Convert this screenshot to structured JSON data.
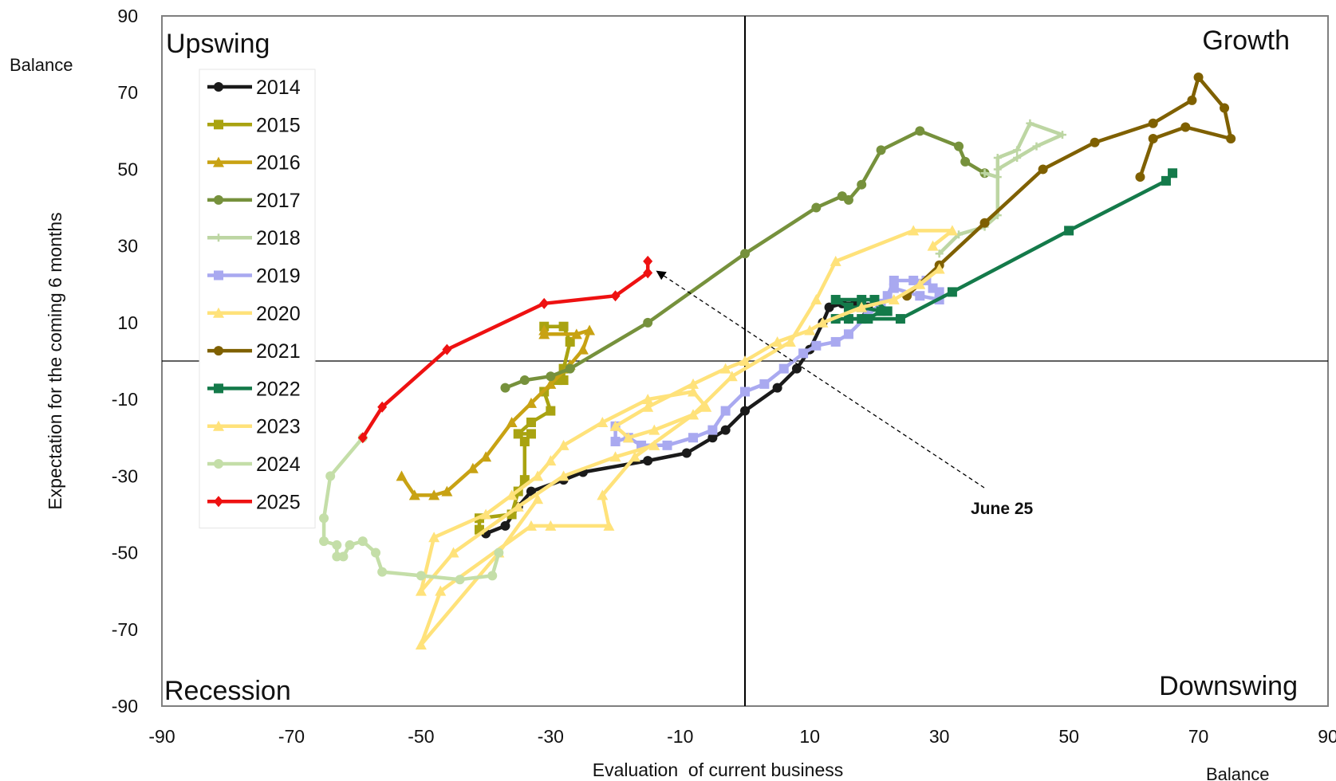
{
  "chart_data": {
    "type": "line",
    "xlabel": "Evaluation  of current business",
    "ylabel": "Expectation for the coming 6 months",
    "x_unit_label": "Balance",
    "y_unit_label": "Balance",
    "xlim": [
      -90,
      90
    ],
    "ylim": [
      -90,
      90
    ],
    "x_ticks": [
      "-90",
      "-70",
      "-50",
      "-30",
      "-10",
      "10",
      "30",
      "50",
      "70",
      "90"
    ],
    "y_ticks": [
      "90",
      "70",
      "50",
      "30",
      "10",
      "-10",
      "-30",
      "-50",
      "-70",
      "-90"
    ],
    "quadrants": {
      "top_left": "Upswing",
      "top_right": "Growth",
      "bottom_left": "Recession",
      "bottom_right": "Downswing"
    },
    "annotation": {
      "text": "June 25",
      "points_to": [
        -15,
        25
      ]
    },
    "legend_position": "top-left",
    "series": [
      {
        "name": "2014",
        "color": "#1a1a1a",
        "marker": "circle",
        "points": [
          [
            -40,
            -45
          ],
          [
            -37,
            -43
          ],
          [
            -35,
            -38
          ],
          [
            -33,
            -34
          ],
          [
            -28,
            -31
          ],
          [
            -25,
            -29
          ],
          [
            -15,
            -26
          ],
          [
            -9,
            -24
          ],
          [
            -5,
            -20
          ],
          [
            -3,
            -18
          ],
          [
            0,
            -13
          ],
          [
            5,
            -7
          ],
          [
            8,
            -2
          ],
          [
            10,
            3
          ],
          [
            12,
            10
          ],
          [
            13,
            14
          ],
          [
            15,
            15
          ],
          [
            17,
            15
          ],
          [
            19,
            14
          ],
          [
            18,
            11
          ],
          [
            16,
            11
          ]
        ]
      },
      {
        "name": "2015",
        "color": "#a9a311",
        "marker": "square",
        "points": [
          [
            -41,
            -44
          ],
          [
            -41,
            -41
          ],
          [
            -36,
            -40
          ],
          [
            -35,
            -34
          ],
          [
            -34,
            -31
          ],
          [
            -34,
            -21
          ],
          [
            -33,
            -19
          ],
          [
            -35,
            -19
          ],
          [
            -33,
            -16
          ],
          [
            -30,
            -13
          ],
          [
            -31,
            -8
          ],
          [
            -29,
            -5
          ],
          [
            -28,
            -5
          ],
          [
            -28,
            -2
          ],
          [
            -27,
            5
          ],
          [
            -28,
            9
          ],
          [
            -31,
            9
          ]
        ]
      },
      {
        "name": "2016",
        "color": "#c8a213",
        "marker": "triangle",
        "points": [
          [
            -53,
            -30
          ],
          [
            -51,
            -35
          ],
          [
            -48,
            -35
          ],
          [
            -46,
            -34
          ],
          [
            -42,
            -28
          ],
          [
            -40,
            -25
          ],
          [
            -36,
            -16
          ],
          [
            -33,
            -11
          ],
          [
            -30,
            -6
          ],
          [
            -27,
            -1
          ],
          [
            -25,
            3
          ],
          [
            -24,
            8
          ],
          [
            -26,
            7
          ],
          [
            -31,
            7
          ],
          [
            -31,
            8
          ]
        ]
      },
      {
        "name": "2017",
        "color": "#76913c",
        "marker": "circle",
        "points": [
          [
            -37,
            -7
          ],
          [
            -34,
            -5
          ],
          [
            -30,
            -4
          ],
          [
            -27,
            -2
          ],
          [
            -15,
            10
          ],
          [
            0,
            28
          ],
          [
            11,
            40
          ],
          [
            15,
            43
          ],
          [
            16,
            42
          ],
          [
            18,
            46
          ],
          [
            21,
            55
          ],
          [
            27,
            60
          ],
          [
            33,
            56
          ],
          [
            34,
            52
          ],
          [
            37,
            49
          ]
        ]
      },
      {
        "name": "2018",
        "color": "#bdd6a3",
        "marker": "plus",
        "points": [
          [
            37,
            49
          ],
          [
            39,
            48
          ],
          [
            39,
            53
          ],
          [
            42,
            55
          ],
          [
            44,
            62
          ],
          [
            49,
            59
          ],
          [
            45,
            56
          ],
          [
            42,
            53
          ],
          [
            39,
            50
          ],
          [
            39,
            38
          ],
          [
            37,
            35
          ],
          [
            33,
            33
          ],
          [
            30,
            28
          ]
        ]
      },
      {
        "name": "2019",
        "color": "#a9a9f0",
        "marker": "square",
        "points": [
          [
            -20,
            -17
          ],
          [
            -20,
            -21
          ],
          [
            -18,
            -20
          ],
          [
            -16,
            -22
          ],
          [
            -12,
            -22
          ],
          [
            -8,
            -20
          ],
          [
            -5,
            -18
          ],
          [
            -3,
            -13
          ],
          [
            0,
            -8
          ],
          [
            3,
            -6
          ],
          [
            6,
            -2
          ],
          [
            9,
            2
          ],
          [
            11,
            4
          ],
          [
            14,
            5
          ],
          [
            16,
            7
          ],
          [
            19,
            12
          ],
          [
            21,
            15
          ],
          [
            22,
            17
          ],
          [
            23,
            21
          ],
          [
            26,
            21
          ],
          [
            28,
            21
          ],
          [
            29,
            19
          ],
          [
            30,
            18
          ],
          [
            30,
            16
          ],
          [
            27,
            17
          ],
          [
            23,
            19
          ]
        ]
      },
      {
        "name": "2020",
        "color": "#ffe27a",
        "marker": "triangle",
        "points": [
          [
            -32,
            -36
          ],
          [
            -38,
            -50
          ],
          [
            -50,
            -74
          ],
          [
            -47,
            -60
          ],
          [
            -33,
            -43
          ],
          [
            -30,
            -43
          ],
          [
            -21,
            -43
          ],
          [
            -22,
            -35
          ],
          [
            -17,
            -25
          ],
          [
            -8,
            -14
          ],
          [
            -2,
            -4
          ],
          [
            7,
            5
          ],
          [
            11,
            16
          ],
          [
            14,
            26
          ],
          [
            26,
            34
          ],
          [
            32,
            34
          ],
          [
            29,
            30
          ]
        ]
      },
      {
        "name": "2021",
        "color": "#7f6000",
        "marker": "circle",
        "points": [
          [
            25,
            17
          ],
          [
            30,
            25
          ],
          [
            37,
            36
          ],
          [
            46,
            50
          ],
          [
            54,
            57
          ],
          [
            63,
            62
          ],
          [
            69,
            68
          ],
          [
            70,
            74
          ],
          [
            74,
            66
          ],
          [
            75,
            58
          ],
          [
            68,
            61
          ],
          [
            63,
            58
          ],
          [
            61,
            48
          ]
        ]
      },
      {
        "name": "2022",
        "color": "#147a4a",
        "marker": "square",
        "points": [
          [
            66,
            49
          ],
          [
            65,
            47
          ],
          [
            50,
            34
          ],
          [
            32,
            18
          ],
          [
            24,
            11
          ],
          [
            18,
            11
          ],
          [
            14,
            11
          ],
          [
            16,
            11
          ],
          [
            19,
            11
          ],
          [
            21,
            13
          ],
          [
            18,
            14
          ],
          [
            16,
            14
          ],
          [
            14,
            16
          ],
          [
            18,
            16
          ],
          [
            20,
            16
          ],
          [
            22,
            13
          ]
        ]
      },
      {
        "name": "2023",
        "color": "#ffe27a",
        "marker": "triangle",
        "points": [
          [
            30,
            24
          ],
          [
            27,
            20
          ],
          [
            23,
            16
          ],
          [
            18,
            14
          ],
          [
            12,
            10
          ],
          [
            10,
            8
          ],
          [
            5,
            5
          ],
          [
            0,
            0
          ],
          [
            -3,
            -2
          ],
          [
            -8,
            -6
          ],
          [
            -15,
            -12
          ],
          [
            -20,
            -17
          ],
          [
            -18,
            -20
          ],
          [
            -14,
            -18
          ],
          [
            -8,
            -14
          ],
          [
            -6,
            -12
          ],
          [
            -8,
            -8
          ],
          [
            -15,
            -10
          ],
          [
            -22,
            -16
          ],
          [
            -28,
            -22
          ],
          [
            -30,
            -26
          ],
          [
            -32,
            -30
          ],
          [
            -36,
            -35
          ],
          [
            -40,
            -40
          ],
          [
            -48,
            -46
          ],
          [
            -50,
            -60
          ],
          [
            -45,
            -50
          ],
          [
            -35,
            -38
          ],
          [
            -28,
            -30
          ],
          [
            -20,
            -25
          ],
          [
            -14,
            -22
          ]
        ]
      },
      {
        "name": "2024",
        "color": "#c4dea8",
        "marker": "circle",
        "points": [
          [
            -38,
            -50
          ],
          [
            -39,
            -56
          ],
          [
            -44,
            -57
          ],
          [
            -50,
            -56
          ],
          [
            -56,
            -55
          ],
          [
            -57,
            -50
          ],
          [
            -59,
            -47
          ],
          [
            -61,
            -48
          ],
          [
            -62,
            -51
          ],
          [
            -63,
            -51
          ],
          [
            -63,
            -48
          ],
          [
            -65,
            -47
          ],
          [
            -65,
            -41
          ],
          [
            -64,
            -30
          ],
          [
            -59,
            -20
          ]
        ]
      },
      {
        "name": "2025",
        "color": "#ee1111",
        "marker": "diamond",
        "points": [
          [
            -59,
            -20
          ],
          [
            -56,
            -12
          ],
          [
            -46,
            3
          ],
          [
            -31,
            15
          ],
          [
            -20,
            17
          ],
          [
            -15,
            23
          ],
          [
            -15,
            26
          ]
        ]
      }
    ]
  }
}
